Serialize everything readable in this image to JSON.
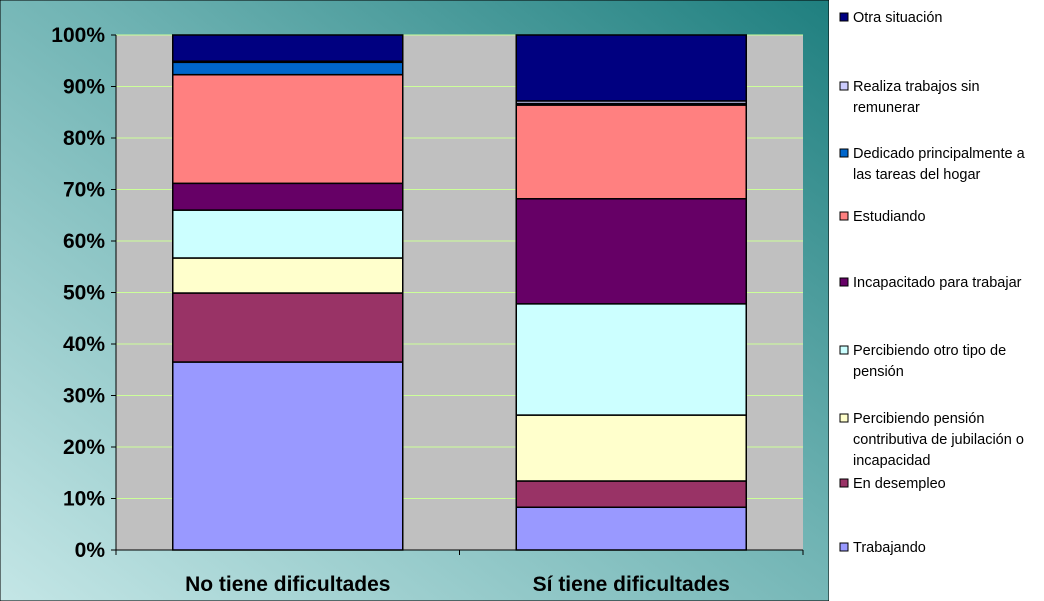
{
  "chart_data": {
    "type": "bar",
    "stacked": true,
    "percent": true,
    "title": "",
    "xlabel": "",
    "ylabel": "",
    "ylim": [
      0,
      100
    ],
    "yticks": [
      "0%",
      "10%",
      "20%",
      "30%",
      "40%",
      "50%",
      "60%",
      "70%",
      "80%",
      "90%",
      "100%"
    ],
    "grid": true,
    "legend_position": "right",
    "categories": [
      "No tiene dificultades",
      "Sí tiene dificultades"
    ],
    "series": [
      {
        "name": "Trabajando",
        "color": "#9999ff",
        "values": [
          36.5,
          8.3
        ]
      },
      {
        "name": "En desempleo",
        "color": "#993366",
        "values": [
          13.4,
          5.1
        ]
      },
      {
        "name": "Percibiendo pensión contributiva de jubilación o incapacidad",
        "color": "#ffffcc",
        "values": [
          6.8,
          12.8
        ]
      },
      {
        "name": "Percibiendo otro tipo de pensión",
        "color": "#ccffff",
        "values": [
          9.3,
          21.6
        ]
      },
      {
        "name": "Incapacitado para trabajar",
        "color": "#660066",
        "values": [
          5.2,
          20.4
        ]
      },
      {
        "name": "Estudiando",
        "color": "#ff8080",
        "values": [
          21.1,
          18.2
        ]
      },
      {
        "name": "Dedicado principalmente a las tareas del hogar",
        "color": "#0066cc",
        "values": [
          2.4,
          0.3
        ]
      },
      {
        "name": "Realiza trabajos sin remunerar",
        "color": "#ccccff",
        "values": [
          0.2,
          0.5
        ]
      },
      {
        "name": "Otra situación",
        "color": "#000080",
        "values": [
          5.1,
          12.8
        ]
      }
    ],
    "legend": [
      {
        "label": "Otra situación",
        "color": "#000080"
      },
      {
        "label": "Realiza trabajos sin remunerar",
        "color": "#ccccff"
      },
      {
        "label": "Dedicado principalmente a las tareas del hogar",
        "color": "#0066cc"
      },
      {
        "label": "Estudiando",
        "color": "#ff8080"
      },
      {
        "label": "Incapacitado para trabajar",
        "color": "#660066"
      },
      {
        "label": "Percibiendo otro tipo de pensión",
        "color": "#ccffff"
      },
      {
        "label": "Percibiendo pensión contributiva de jubilación o incapacidad",
        "color": "#ffffcc"
      },
      {
        "label": "En desempleo",
        "color": "#993366"
      },
      {
        "label": "Trabajando",
        "color": "#9999ff"
      }
    ],
    "colors": {
      "plot_background": "#c0c0c0",
      "gridline": "#ccff99"
    }
  }
}
